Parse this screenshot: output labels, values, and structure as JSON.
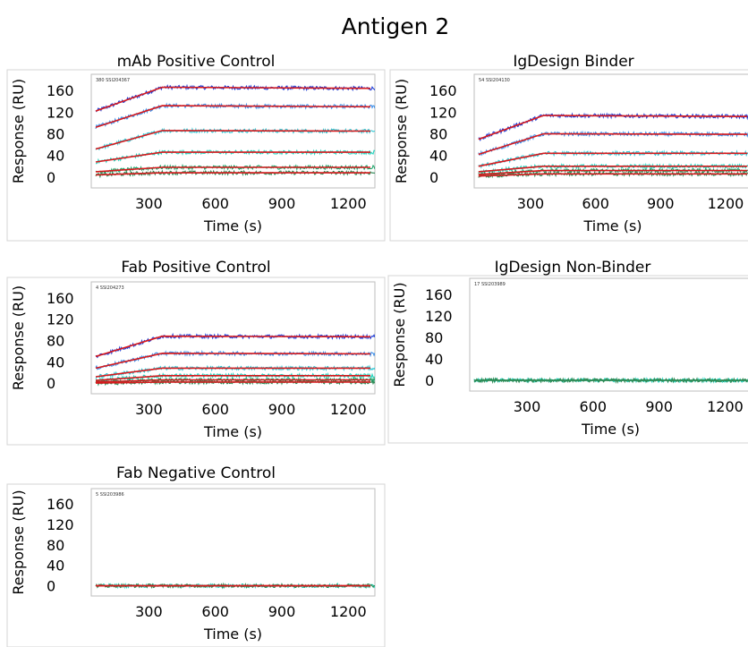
{
  "title": "Antigen 2",
  "chart_data": [
    {
      "type": "line",
      "title": "mAb Positive Control",
      "id_label": "380 SSI204367",
      "xlabel": "Time (s)",
      "ylabel": "Response (RU)",
      "xticks": [
        300,
        600,
        900,
        1200
      ],
      "yticks": [
        0,
        40,
        80,
        120,
        160
      ],
      "xlim": [
        40,
        1320
      ],
      "ylim": [
        -20,
        190
      ],
      "switch_time": 360,
      "fit_color": "#d7191c",
      "series": [
        {
          "color": "#1f3ed6",
          "values": [
            [
              60,
              122
            ],
            [
              360,
              166
            ],
            [
              1300,
              164
            ]
          ]
        },
        {
          "color": "#3d8fe8",
          "values": [
            [
              60,
              92
            ],
            [
              360,
              132
            ],
            [
              1300,
              130
            ]
          ]
        },
        {
          "color": "#2ec9d6",
          "values": [
            [
              60,
              52
            ],
            [
              360,
              86
            ],
            [
              1300,
              85
            ]
          ]
        },
        {
          "color": "#25d4bf",
          "values": [
            [
              60,
              28
            ],
            [
              360,
              46
            ],
            [
              1300,
              46
            ]
          ]
        },
        {
          "color": "#1fa46a",
          "values": [
            [
              60,
              10
            ],
            [
              360,
              18
            ],
            [
              1300,
              18
            ]
          ]
        },
        {
          "color": "#2e8b57",
          "values": [
            [
              60,
              4
            ],
            [
              360,
              8
            ],
            [
              1300,
              8
            ]
          ]
        }
      ]
    },
    {
      "type": "line",
      "title": "IgDesign Binder",
      "id_label": "54 SSI204130",
      "xlabel": "Time (s)",
      "ylabel": "Response (RU)",
      "xticks": [
        300,
        600,
        900,
        1200
      ],
      "yticks": [
        0,
        40,
        80,
        120,
        160
      ],
      "xlim": [
        40,
        1320
      ],
      "ylim": [
        -20,
        190
      ],
      "switch_time": 360,
      "fit_color": "#d7191c",
      "series": [
        {
          "color": "#1f3ed6",
          "values": [
            [
              60,
              70
            ],
            [
              360,
              114
            ],
            [
              1300,
              112
            ]
          ]
        },
        {
          "color": "#3d8fe8",
          "values": [
            [
              60,
              42
            ],
            [
              360,
              80
            ],
            [
              1300,
              79
            ]
          ]
        },
        {
          "color": "#2ec9d6",
          "values": [
            [
              60,
              20
            ],
            [
              360,
              44
            ],
            [
              1300,
              44
            ]
          ]
        },
        {
          "color": "#25d4bf",
          "values": [
            [
              60,
              10
            ],
            [
              360,
              20
            ],
            [
              1300,
              20
            ]
          ]
        },
        {
          "color": "#1fa46a",
          "values": [
            [
              60,
              5
            ],
            [
              360,
              12
            ],
            [
              1300,
              12
            ]
          ]
        },
        {
          "color": "#2e8b57",
          "values": [
            [
              60,
              2
            ],
            [
              360,
              6
            ],
            [
              1300,
              6
            ]
          ]
        }
      ]
    },
    {
      "type": "line",
      "title": "Fab Positive Control",
      "id_label": "4 SSI204273",
      "xlabel": "Time (s)",
      "ylabel": "Response (RU)",
      "xticks": [
        300,
        600,
        900,
        1200
      ],
      "yticks": [
        0,
        40,
        80,
        120,
        160
      ],
      "xlim": [
        40,
        1320
      ],
      "ylim": [
        -20,
        190
      ],
      "switch_time": 360,
      "fit_color": "#d7191c",
      "series": [
        {
          "color": "#1f3ed6",
          "values": [
            [
              60,
              50
            ],
            [
              360,
              88
            ],
            [
              1300,
              87
            ]
          ]
        },
        {
          "color": "#3d8fe8",
          "values": [
            [
              60,
              28
            ],
            [
              360,
              56
            ],
            [
              1300,
              55
            ]
          ]
        },
        {
          "color": "#2ec9d6",
          "values": [
            [
              60,
              12
            ],
            [
              360,
              28
            ],
            [
              1300,
              28
            ]
          ]
        },
        {
          "color": "#25d4bf",
          "values": [
            [
              60,
              5
            ],
            [
              360,
              14
            ],
            [
              1300,
              14
            ]
          ]
        },
        {
          "color": "#1fa46a",
          "values": [
            [
              60,
              2
            ],
            [
              360,
              6
            ],
            [
              1300,
              6
            ]
          ]
        },
        {
          "color": "#2e8b57",
          "values": [
            [
              60,
              0
            ],
            [
              360,
              2
            ],
            [
              1300,
              2
            ]
          ]
        }
      ]
    },
    {
      "type": "line",
      "title": "IgDesign Non-Binder",
      "id_label": "17 SSI203989",
      "xlabel": "Time (s)",
      "ylabel": "Response (RU)",
      "xticks": [
        300,
        600,
        900,
        1200
      ],
      "yticks": [
        0,
        40,
        80,
        120,
        160
      ],
      "xlim": [
        40,
        1320
      ],
      "ylim": [
        -20,
        190
      ],
      "switch_time": 360,
      "fit_color": "#2e8b57",
      "series": [
        {
          "color": "#25d4bf",
          "values": [
            [
              60,
              0
            ],
            [
              360,
              0
            ],
            [
              1300,
              0
            ]
          ]
        },
        {
          "color": "#2e8b57",
          "values": [
            [
              60,
              0
            ],
            [
              360,
              0
            ],
            [
              1300,
              0
            ]
          ]
        }
      ]
    },
    {
      "type": "line",
      "title": "Fab Negative Control",
      "id_label": "5 SSI203986",
      "xlabel": "Time (s)",
      "ylabel": "Response (RU)",
      "xticks": [
        300,
        600,
        900,
        1200
      ],
      "yticks": [
        0,
        40,
        80,
        120,
        160
      ],
      "xlim": [
        40,
        1320
      ],
      "ylim": [
        -20,
        190
      ],
      "switch_time": 360,
      "fit_color": "#d7191c",
      "series": [
        {
          "color": "#25d4bf",
          "values": [
            [
              60,
              0
            ],
            [
              360,
              0
            ],
            [
              1300,
              0
            ]
          ]
        },
        {
          "color": "#2e8b57",
          "values": [
            [
              60,
              0
            ],
            [
              360,
              0
            ],
            [
              1300,
              0
            ]
          ]
        }
      ]
    }
  ]
}
